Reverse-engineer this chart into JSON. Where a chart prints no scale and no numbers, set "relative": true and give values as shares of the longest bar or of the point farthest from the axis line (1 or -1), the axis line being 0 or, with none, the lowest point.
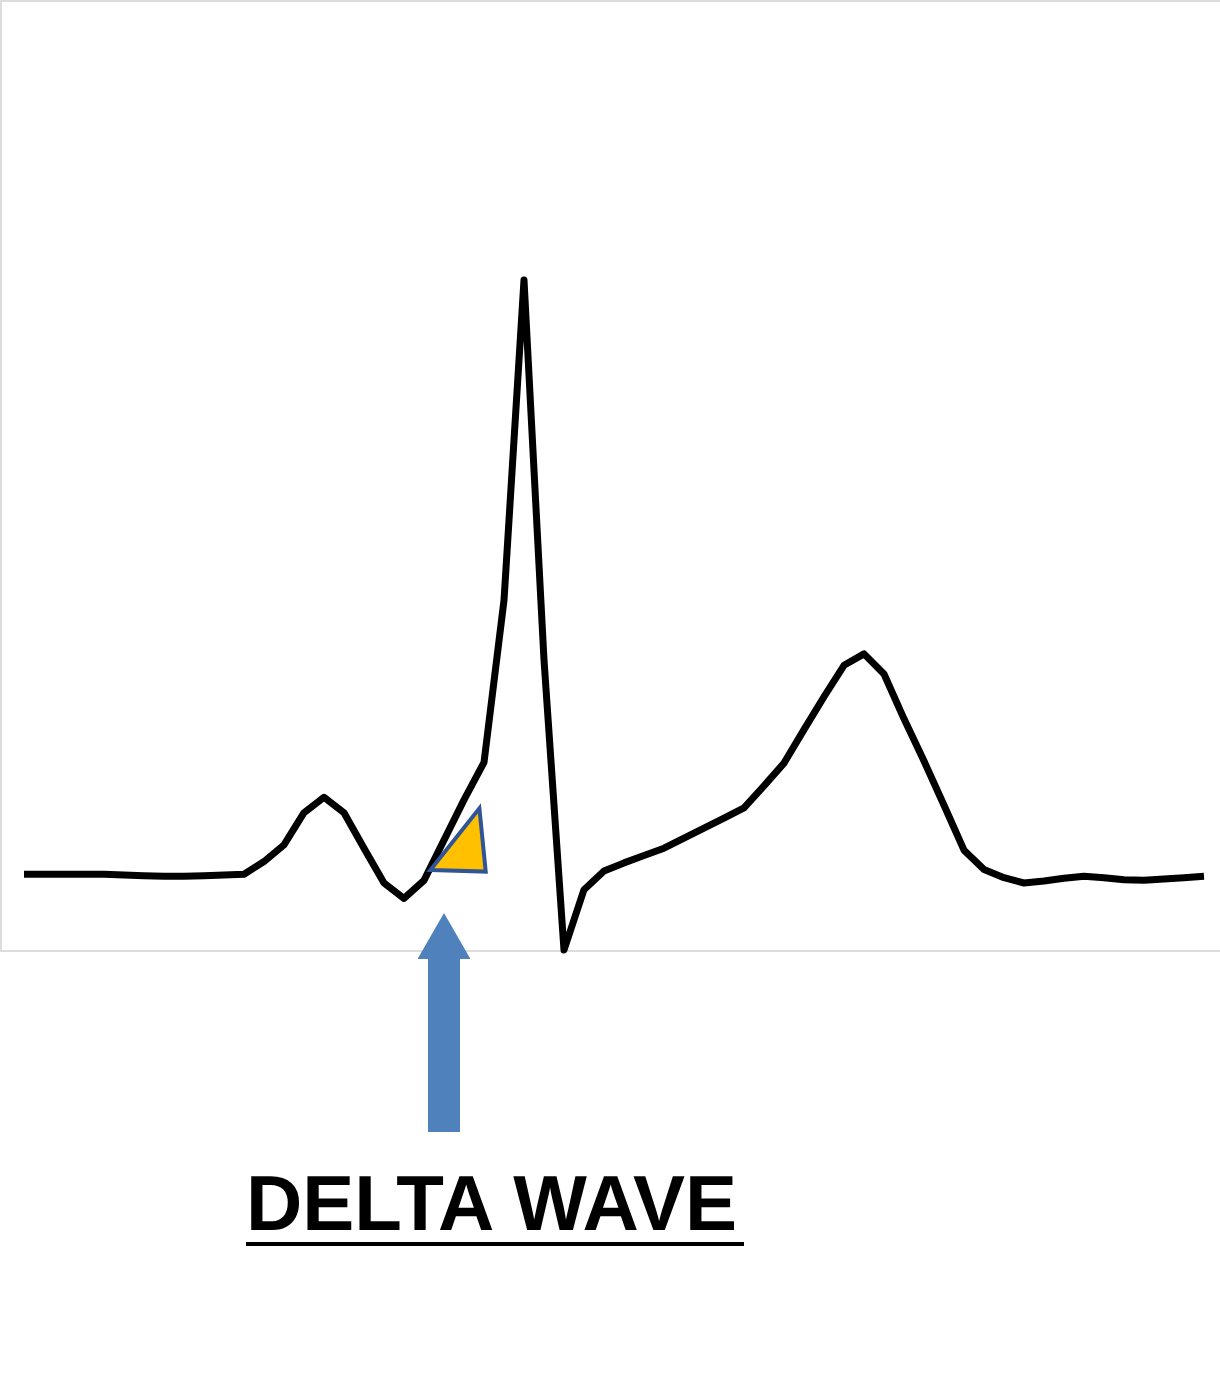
{
  "chart_data": {
    "type": "line",
    "relative": true,
    "tick_labels": false,
    "grid": false,
    "marker": "none",
    "line_style": "solid",
    "categories": [
      null,
      null,
      null,
      null,
      null,
      null,
      null,
      null,
      null,
      null,
      null,
      null,
      null,
      null,
      null,
      null,
      null,
      null,
      null,
      null,
      null,
      null,
      null,
      null,
      null,
      null,
      null,
      null,
      null,
      null,
      null,
      null,
      null,
      null,
      null,
      null,
      null,
      null,
      null,
      null,
      null,
      null,
      null,
      null,
      null,
      null,
      null,
      null,
      null,
      null,
      null,
      null,
      null,
      null,
      null,
      null,
      null,
      null,
      null,
      null
    ],
    "series": [
      {
        "color": "#000000",
        "values": [
          0.113,
          0.113,
          0.113,
          0.113,
          0.113,
          0.112,
          0.111,
          0.11,
          0.11,
          0.111,
          0.112,
          0.113,
          0.132,
          0.157,
          0.205,
          0.228,
          0.205,
          0.152,
          0.1,
          0.077,
          0.104,
          0.164,
          0.224,
          0.28,
          0.522,
          1.0,
          0.433,
          0.0,
          0.09,
          0.118,
          0.13,
          0.141,
          0.152,
          0.167,
          0.182,
          0.197,
          0.212,
          0.245,
          0.279,
          0.329,
          0.378,
          0.425,
          0.442,
          0.412,
          0.345,
          0.282,
          0.216,
          0.149,
          0.12,
          0.108,
          0.1,
          0.103,
          0.107,
          0.11,
          0.108,
          0.105,
          0.104,
          0.106,
          0.108,
          0.11
        ]
      }
    ],
    "annotations": [
      "DELTA WAVE"
    ]
  }
}
